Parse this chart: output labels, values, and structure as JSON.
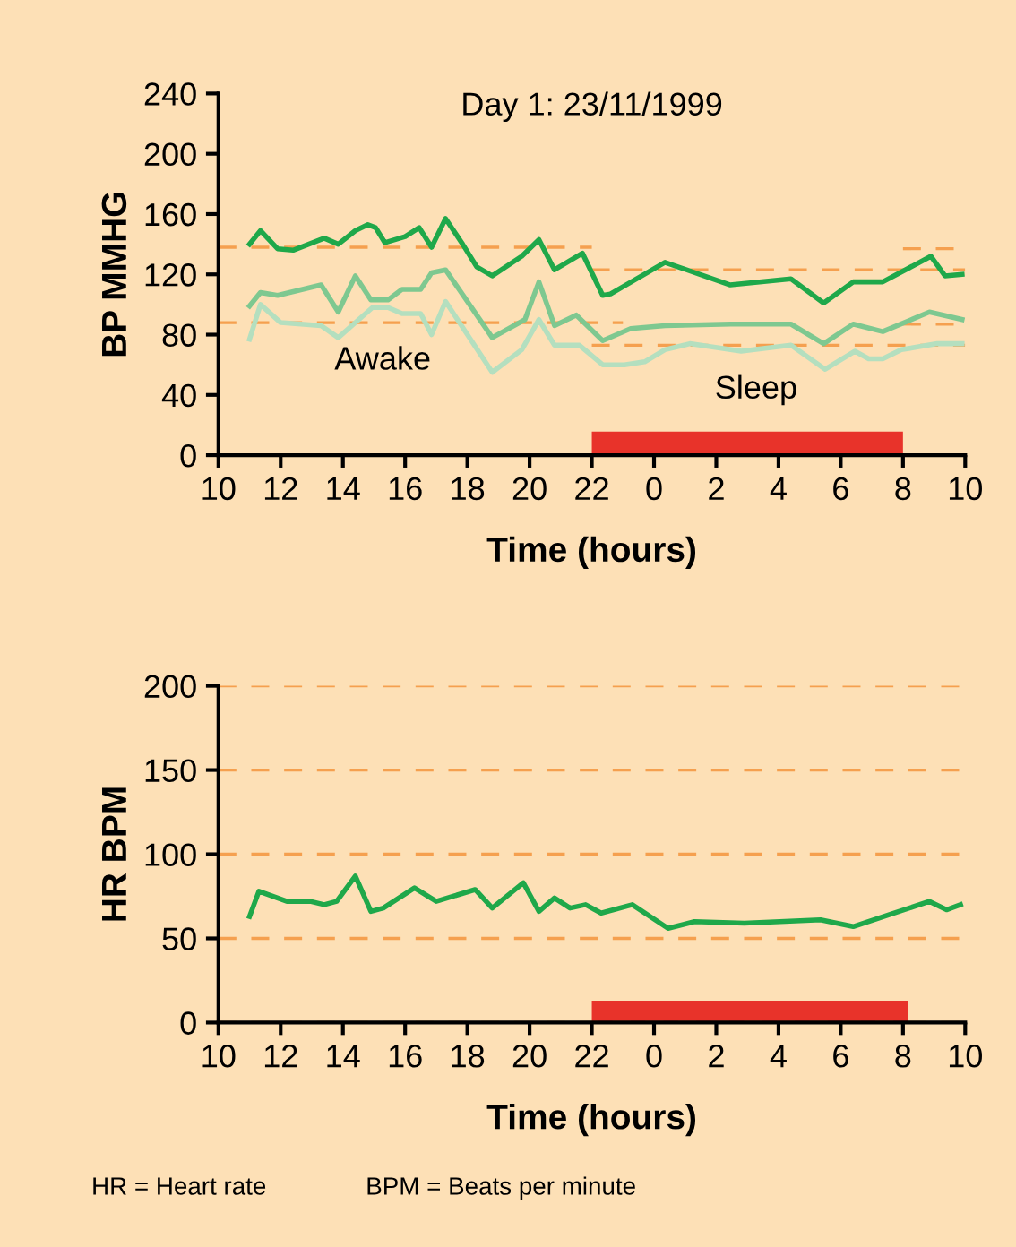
{
  "chart_data": [
    {
      "type": "line",
      "title": "Day 1: 23/11/1999",
      "xlabel": "Time (hours)",
      "ylabel": "BP MMHG",
      "xlim": [
        "1999-11-23T10:00",
        "1999-11-24T10:00"
      ],
      "ylim": [
        0,
        240
      ],
      "xticks": [
        {
          "value": "1999-11-23T10:00",
          "label": "10"
        },
        {
          "value": "1999-11-23T12:00",
          "label": "12"
        },
        {
          "value": "1999-11-23T14:00",
          "label": "14"
        },
        {
          "value": "1999-11-23T16:00",
          "label": "16"
        },
        {
          "value": "1999-11-23T18:00",
          "label": "18"
        },
        {
          "value": "1999-11-23T20:00",
          "label": "20"
        },
        {
          "value": "1999-11-23T22:00",
          "label": "22"
        },
        {
          "value": "1999-11-24T00:00",
          "label": "0"
        },
        {
          "value": "1999-11-24T02:00",
          "label": "2"
        },
        {
          "value": "1999-11-24T04:00",
          "label": "4"
        },
        {
          "value": "1999-11-24T06:00",
          "label": "6"
        },
        {
          "value": "1999-11-24T08:00",
          "label": "8"
        },
        {
          "value": "1999-11-24T10:00",
          "label": "10"
        }
      ],
      "yticks": [
        0,
        40,
        80,
        120,
        160,
        200,
        240
      ],
      "grid": false,
      "legend": false,
      "series": [
        {
          "color": "#f5a04f",
          "line_style": "dashed",
          "x": [
            "1999-11-23T10:00",
            "1999-11-23T22:00"
          ],
          "values": [
            138,
            138
          ]
        },
        {
          "color": "#f5a04f",
          "line_style": "dashed",
          "x": [
            "1999-11-23T22:00",
            "1999-11-24T10:00"
          ],
          "values": [
            123,
            123
          ]
        },
        {
          "color": "#f5a04f",
          "line_style": "dashed",
          "x": [
            "1999-11-24T08:00",
            "1999-11-24T10:00"
          ],
          "values": [
            137,
            137
          ]
        },
        {
          "color": "#f5a04f",
          "line_style": "dashed",
          "x": [
            "1999-11-23T10:00",
            "1999-11-23T23:00"
          ],
          "values": [
            88,
            88
          ]
        },
        {
          "color": "#f5a04f",
          "line_style": "dashed",
          "x": [
            "1999-11-23T22:00",
            "1999-11-24T10:00"
          ],
          "values": [
            73,
            73
          ]
        },
        {
          "color": "#f5a04f",
          "line_style": "dashed",
          "x": [
            "1999-11-24T08:00",
            "1999-11-24T10:00"
          ],
          "values": [
            87,
            87
          ]
        },
        {
          "color": "#b4dfbf",
          "x": [
            "1999-11-23T11:00",
            "1999-11-23T11:21",
            "1999-11-23T12:00",
            "1999-11-23T13:18",
            "1999-11-23T13:51",
            "1999-11-23T14:57",
            "1999-11-23T15:27",
            "1999-11-23T15:54",
            "1999-11-23T16:30",
            "1999-11-23T16:51",
            "1999-11-23T17:18",
            "1999-11-23T18:48",
            "1999-11-23T19:45",
            "1999-11-23T20:18",
            "1999-11-23T20:48",
            "1999-11-23T21:36",
            "1999-11-23T22:21",
            "1999-11-23T23:03",
            "1999-11-23T23:42",
            "1999-11-24T00:21",
            "1999-11-24T01:09",
            "1999-11-24T02:48",
            "1999-11-24T04:24",
            "1999-11-24T05:30",
            "1999-11-24T06:27",
            "1999-11-24T06:54",
            "1999-11-24T07:21",
            "1999-11-24T07:57",
            "1999-11-24T09:06",
            "1999-11-24T09:54"
          ],
          "values": [
            77,
            100,
            88,
            86,
            78,
            98,
            98,
            94,
            94,
            80,
            102,
            55,
            70,
            90,
            73,
            73,
            60,
            60,
            62,
            70,
            74,
            69,
            73,
            57,
            69,
            64,
            64,
            70,
            74,
            74
          ]
        },
        {
          "color": "#7ec890",
          "x": [
            "1999-11-23T11:00",
            "1999-11-23T11:21",
            "1999-11-23T11:54",
            "1999-11-23T13:18",
            "1999-11-23T13:51",
            "1999-11-23T14:24",
            "1999-11-23T14:54",
            "1999-11-23T15:27",
            "1999-11-23T15:54",
            "1999-11-23T16:30",
            "1999-11-23T16:51",
            "1999-11-23T17:18",
            "1999-11-23T18:48",
            "1999-11-23T19:51",
            "1999-11-23T20:18",
            "1999-11-23T20:48",
            "1999-11-23T21:30",
            "1999-11-23T22:21",
            "1999-11-23T23:15",
            "1999-11-24T00:21",
            "1999-11-24T02:27",
            "1999-11-24T04:24",
            "1999-11-24T05:27",
            "1999-11-24T06:24",
            "1999-11-24T07:21",
            "1999-11-24T08:51",
            "1999-11-24T09:54"
          ],
          "values": [
            99,
            108,
            106,
            113,
            95,
            119,
            103,
            103,
            110,
            110,
            121,
            123,
            78,
            90,
            115,
            86,
            93,
            76,
            84,
            86,
            87,
            87,
            74,
            87,
            82,
            95,
            90
          ]
        },
        {
          "color": "#1fa84a",
          "x": [
            "1999-11-23T11:00",
            "1999-11-23T11:21",
            "1999-11-23T11:54",
            "1999-11-23T12:24",
            "1999-11-23T13:24",
            "1999-11-23T13:51",
            "1999-11-23T14:24",
            "1999-11-23T14:48",
            "1999-11-23T15:03",
            "1999-11-23T15:21",
            "1999-11-23T16:00",
            "1999-11-23T16:27",
            "1999-11-23T16:51",
            "1999-11-23T17:18",
            "1999-11-23T17:51",
            "1999-11-23T18:18",
            "1999-11-23T18:48",
            "1999-11-23T19:45",
            "1999-11-23T20:18",
            "1999-11-23T20:48",
            "1999-11-23T21:42",
            "1999-11-23T22:21",
            "1999-11-23T22:36",
            "1999-11-24T00:21",
            "1999-11-24T02:27",
            "1999-11-24T04:24",
            "1999-11-24T05:27",
            "1999-11-24T06:24",
            "1999-11-24T07:21",
            "1999-11-24T08:54",
            "1999-11-24T09:21",
            "1999-11-24T09:54"
          ],
          "values": [
            140,
            149,
            137,
            136,
            144,
            140,
            149,
            153,
            151,
            141,
            145,
            151,
            138,
            157,
            140,
            125,
            119,
            132,
            143,
            123,
            134,
            106,
            107,
            128,
            113,
            117,
            101,
            115,
            115,
            132,
            119,
            120
          ]
        }
      ],
      "bands": [
        {
          "axis": "x",
          "from": "1999-11-23T22:00",
          "to": "1999-11-24T08:00",
          "color": "#e8332a"
        }
      ],
      "annotations": [
        "Awake",
        "Sleep"
      ]
    },
    {
      "type": "line",
      "xlabel": "Time (hours)",
      "ylabel": "HR BPM",
      "xlim": [
        "1999-11-23T10:00",
        "1999-11-24T10:00"
      ],
      "ylim": [
        0,
        200
      ],
      "xticks": [
        {
          "value": "1999-11-23T10:00",
          "label": "10"
        },
        {
          "value": "1999-11-23T12:00",
          "label": "12"
        },
        {
          "value": "1999-11-23T14:00",
          "label": "14"
        },
        {
          "value": "1999-11-23T16:00",
          "label": "16"
        },
        {
          "value": "1999-11-23T18:00",
          "label": "18"
        },
        {
          "value": "1999-11-23T20:00",
          "label": "20"
        },
        {
          "value": "1999-11-23T22:00",
          "label": "22"
        },
        {
          "value": "1999-11-24T00:00",
          "label": "0"
        },
        {
          "value": "1999-11-24T02:00",
          "label": "2"
        },
        {
          "value": "1999-11-24T04:00",
          "label": "4"
        },
        {
          "value": "1999-11-24T06:00",
          "label": "6"
        },
        {
          "value": "1999-11-24T08:00",
          "label": "8"
        },
        {
          "value": "1999-11-24T10:00",
          "label": "10"
        }
      ],
      "yticks": [
        0,
        50,
        100,
        150,
        200
      ],
      "grid": "y",
      "legend": false,
      "series": [
        {
          "color": "#1fa84a",
          "x": [
            "1999-11-23T11:00",
            "1999-11-23T11:18",
            "1999-11-23T12:12",
            "1999-11-23T12:57",
            "1999-11-23T13:24",
            "1999-11-23T13:48",
            "1999-11-23T14:24",
            "1999-11-23T14:54",
            "1999-11-23T15:18",
            "1999-11-23T16:18",
            "1999-11-23T17:00",
            "1999-11-23T18:15",
            "1999-11-23T18:48",
            "1999-11-23T19:48",
            "1999-11-23T20:18",
            "1999-11-23T20:48",
            "1999-11-23T21:18",
            "1999-11-23T21:48",
            "1999-11-23T22:18",
            "1999-11-23T23:18",
            "1999-11-24T00:27",
            "1999-11-24T01:18",
            "1999-11-24T02:54",
            "1999-11-24T05:21",
            "1999-11-24T06:24",
            "1999-11-24T08:51",
            "1999-11-24T09:24",
            "1999-11-24T09:51"
          ],
          "values": [
            63,
            78,
            72,
            72,
            70,
            72,
            87,
            66,
            68,
            80,
            72,
            79,
            68,
            83,
            66,
            74,
            68,
            70,
            65,
            70,
            56,
            60,
            59,
            61,
            57,
            72,
            67,
            70
          ]
        }
      ],
      "bands": [
        {
          "axis": "x",
          "from": "1999-11-23T22:00",
          "to": "1999-11-24T08:09",
          "color": "#e8332a"
        }
      ],
      "annotations": [
        "HR = Heart rate",
        "BPM = Beats per minute"
      ]
    }
  ]
}
